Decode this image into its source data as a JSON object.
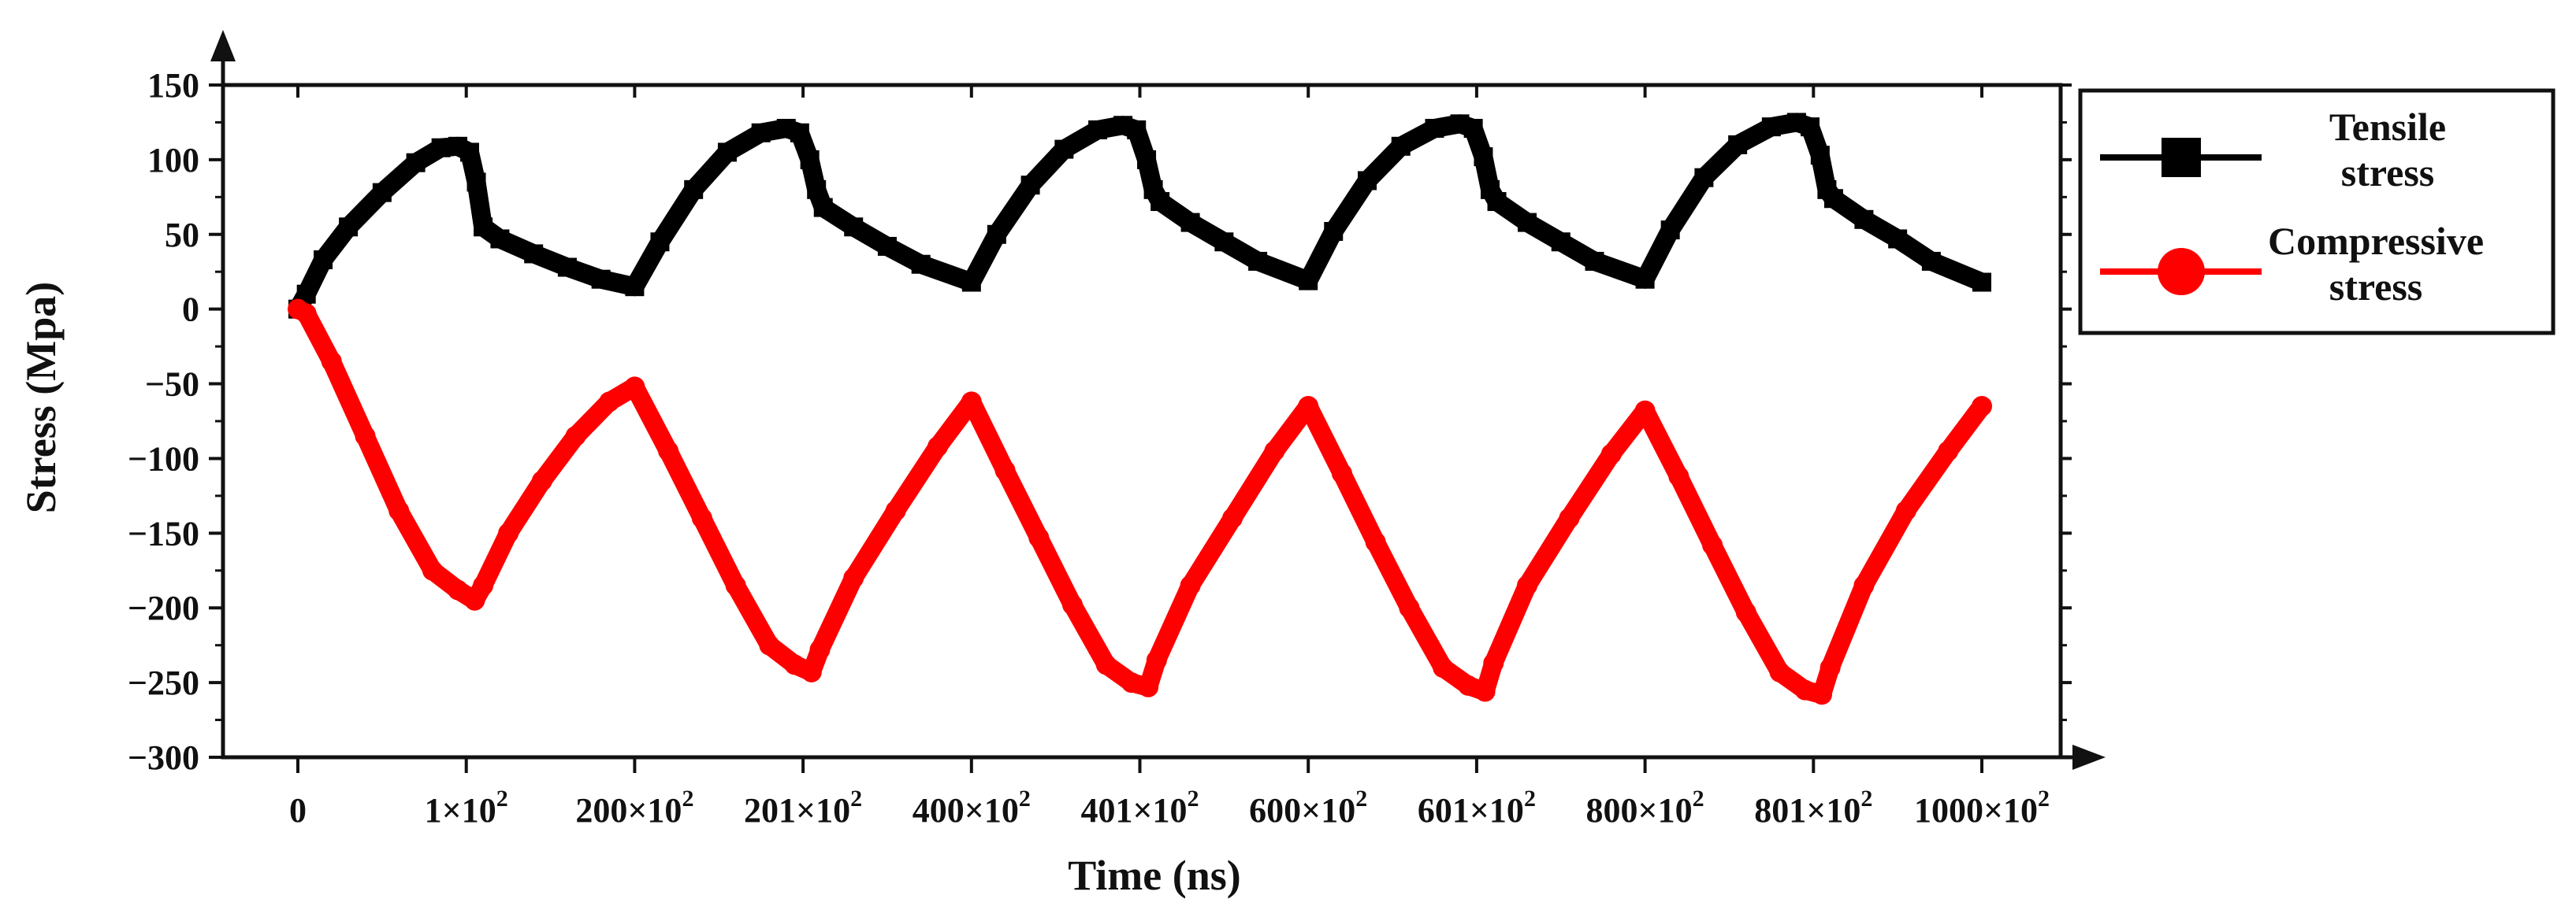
{
  "chart_data": {
    "type": "line",
    "title": "",
    "xlabel": "Time (ns)",
    "ylabel": "Stress  (Mpa)",
    "ylim": [
      -300,
      150
    ],
    "xlim": [
      0,
      10
    ],
    "x_tick_positions": [
      0,
      1,
      2,
      3,
      4,
      5,
      6,
      7,
      8,
      9,
      10
    ],
    "x_tick_labels": [
      {
        "mant": "0",
        "exp": ""
      },
      {
        "mant": "1×10",
        "exp": "2"
      },
      {
        "mant": "200×10",
        "exp": "2"
      },
      {
        "mant": "201×10",
        "exp": "2"
      },
      {
        "mant": "400×10",
        "exp": "2"
      },
      {
        "mant": "401×10",
        "exp": "2"
      },
      {
        "mant": "600×10",
        "exp": "2"
      },
      {
        "mant": "601×10",
        "exp": "2"
      },
      {
        "mant": "800×10",
        "exp": "2"
      },
      {
        "mant": "801×10",
        "exp": "2"
      },
      {
        "mant": "1000×10",
        "exp": "2"
      }
    ],
    "y_ticks": [
      150,
      100,
      50,
      0,
      -50,
      -100,
      -150,
      -200,
      -250,
      -300
    ],
    "legend_placement": "right",
    "series": [
      {
        "name": "Tensile stress",
        "legend_lines": [
          "Tensile",
          "stress"
        ],
        "color": "#000000",
        "marker": "square",
        "x": [
          0,
          0.05,
          0.15,
          0.3,
          0.5,
          0.7,
          0.85,
          0.95,
          1.02,
          1.06,
          1.1,
          1.2,
          1.4,
          1.6,
          1.8,
          2.0,
          2.15,
          2.35,
          2.55,
          2.75,
          2.9,
          2.98,
          3.04,
          3.08,
          3.12,
          3.3,
          3.5,
          3.7,
          4.0,
          4.15,
          4.35,
          4.55,
          4.75,
          4.9,
          4.98,
          5.04,
          5.08,
          5.12,
          5.3,
          5.5,
          5.7,
          6.0,
          6.15,
          6.35,
          6.55,
          6.75,
          6.9,
          6.98,
          7.04,
          7.08,
          7.12,
          7.3,
          7.5,
          7.7,
          8.0,
          8.15,
          8.35,
          8.55,
          8.75,
          8.9,
          8.98,
          9.04,
          9.08,
          9.12,
          9.3,
          9.5,
          9.7,
          10.0
        ],
        "y": [
          0,
          10,
          33,
          55,
          78,
          98,
          108,
          109,
          105,
          85,
          55,
          47,
          37,
          28,
          20,
          15,
          45,
          80,
          105,
          118,
          121,
          118,
          100,
          80,
          68,
          55,
          42,
          30,
          18,
          50,
          83,
          107,
          120,
          123,
          120,
          100,
          80,
          72,
          58,
          45,
          32,
          19,
          52,
          86,
          109,
          121,
          124,
          121,
          102,
          80,
          72,
          58,
          45,
          32,
          20,
          53,
          88,
          110,
          122,
          125,
          122,
          103,
          80,
          74,
          60,
          47,
          32,
          18
        ]
      },
      {
        "name": "Compressive stress",
        "legend_lines": [
          "Compressive",
          "stress"
        ],
        "color": "#ff0000",
        "marker": "circle",
        "x": [
          0,
          0.05,
          0.2,
          0.4,
          0.6,
          0.8,
          0.95,
          1.05,
          1.1,
          1.25,
          1.45,
          1.65,
          1.85,
          2.0,
          2.2,
          2.4,
          2.6,
          2.8,
          2.95,
          3.05,
          3.1,
          3.3,
          3.55,
          3.8,
          4.0,
          4.2,
          4.4,
          4.6,
          4.8,
          4.95,
          5.05,
          5.1,
          5.3,
          5.55,
          5.8,
          6.0,
          6.2,
          6.4,
          6.6,
          6.8,
          6.95,
          7.05,
          7.1,
          7.3,
          7.55,
          7.8,
          8.0,
          8.2,
          8.4,
          8.6,
          8.8,
          8.95,
          9.05,
          9.1,
          9.3,
          9.55,
          9.8,
          10.0
        ],
        "y": [
          0,
          -3,
          -35,
          -85,
          -135,
          -175,
          -188,
          -195,
          -185,
          -150,
          -115,
          -85,
          -62,
          -52,
          -95,
          -140,
          -185,
          -225,
          -238,
          -243,
          -228,
          -180,
          -135,
          -92,
          -62,
          -108,
          -153,
          -198,
          -238,
          -250,
          -253,
          -235,
          -185,
          -140,
          -95,
          -65,
          -110,
          -156,
          -200,
          -240,
          -252,
          -256,
          -237,
          -185,
          -140,
          -97,
          -68,
          -112,
          -158,
          -203,
          -243,
          -255,
          -258,
          -240,
          -185,
          -135,
          -95,
          -65
        ]
      }
    ]
  }
}
